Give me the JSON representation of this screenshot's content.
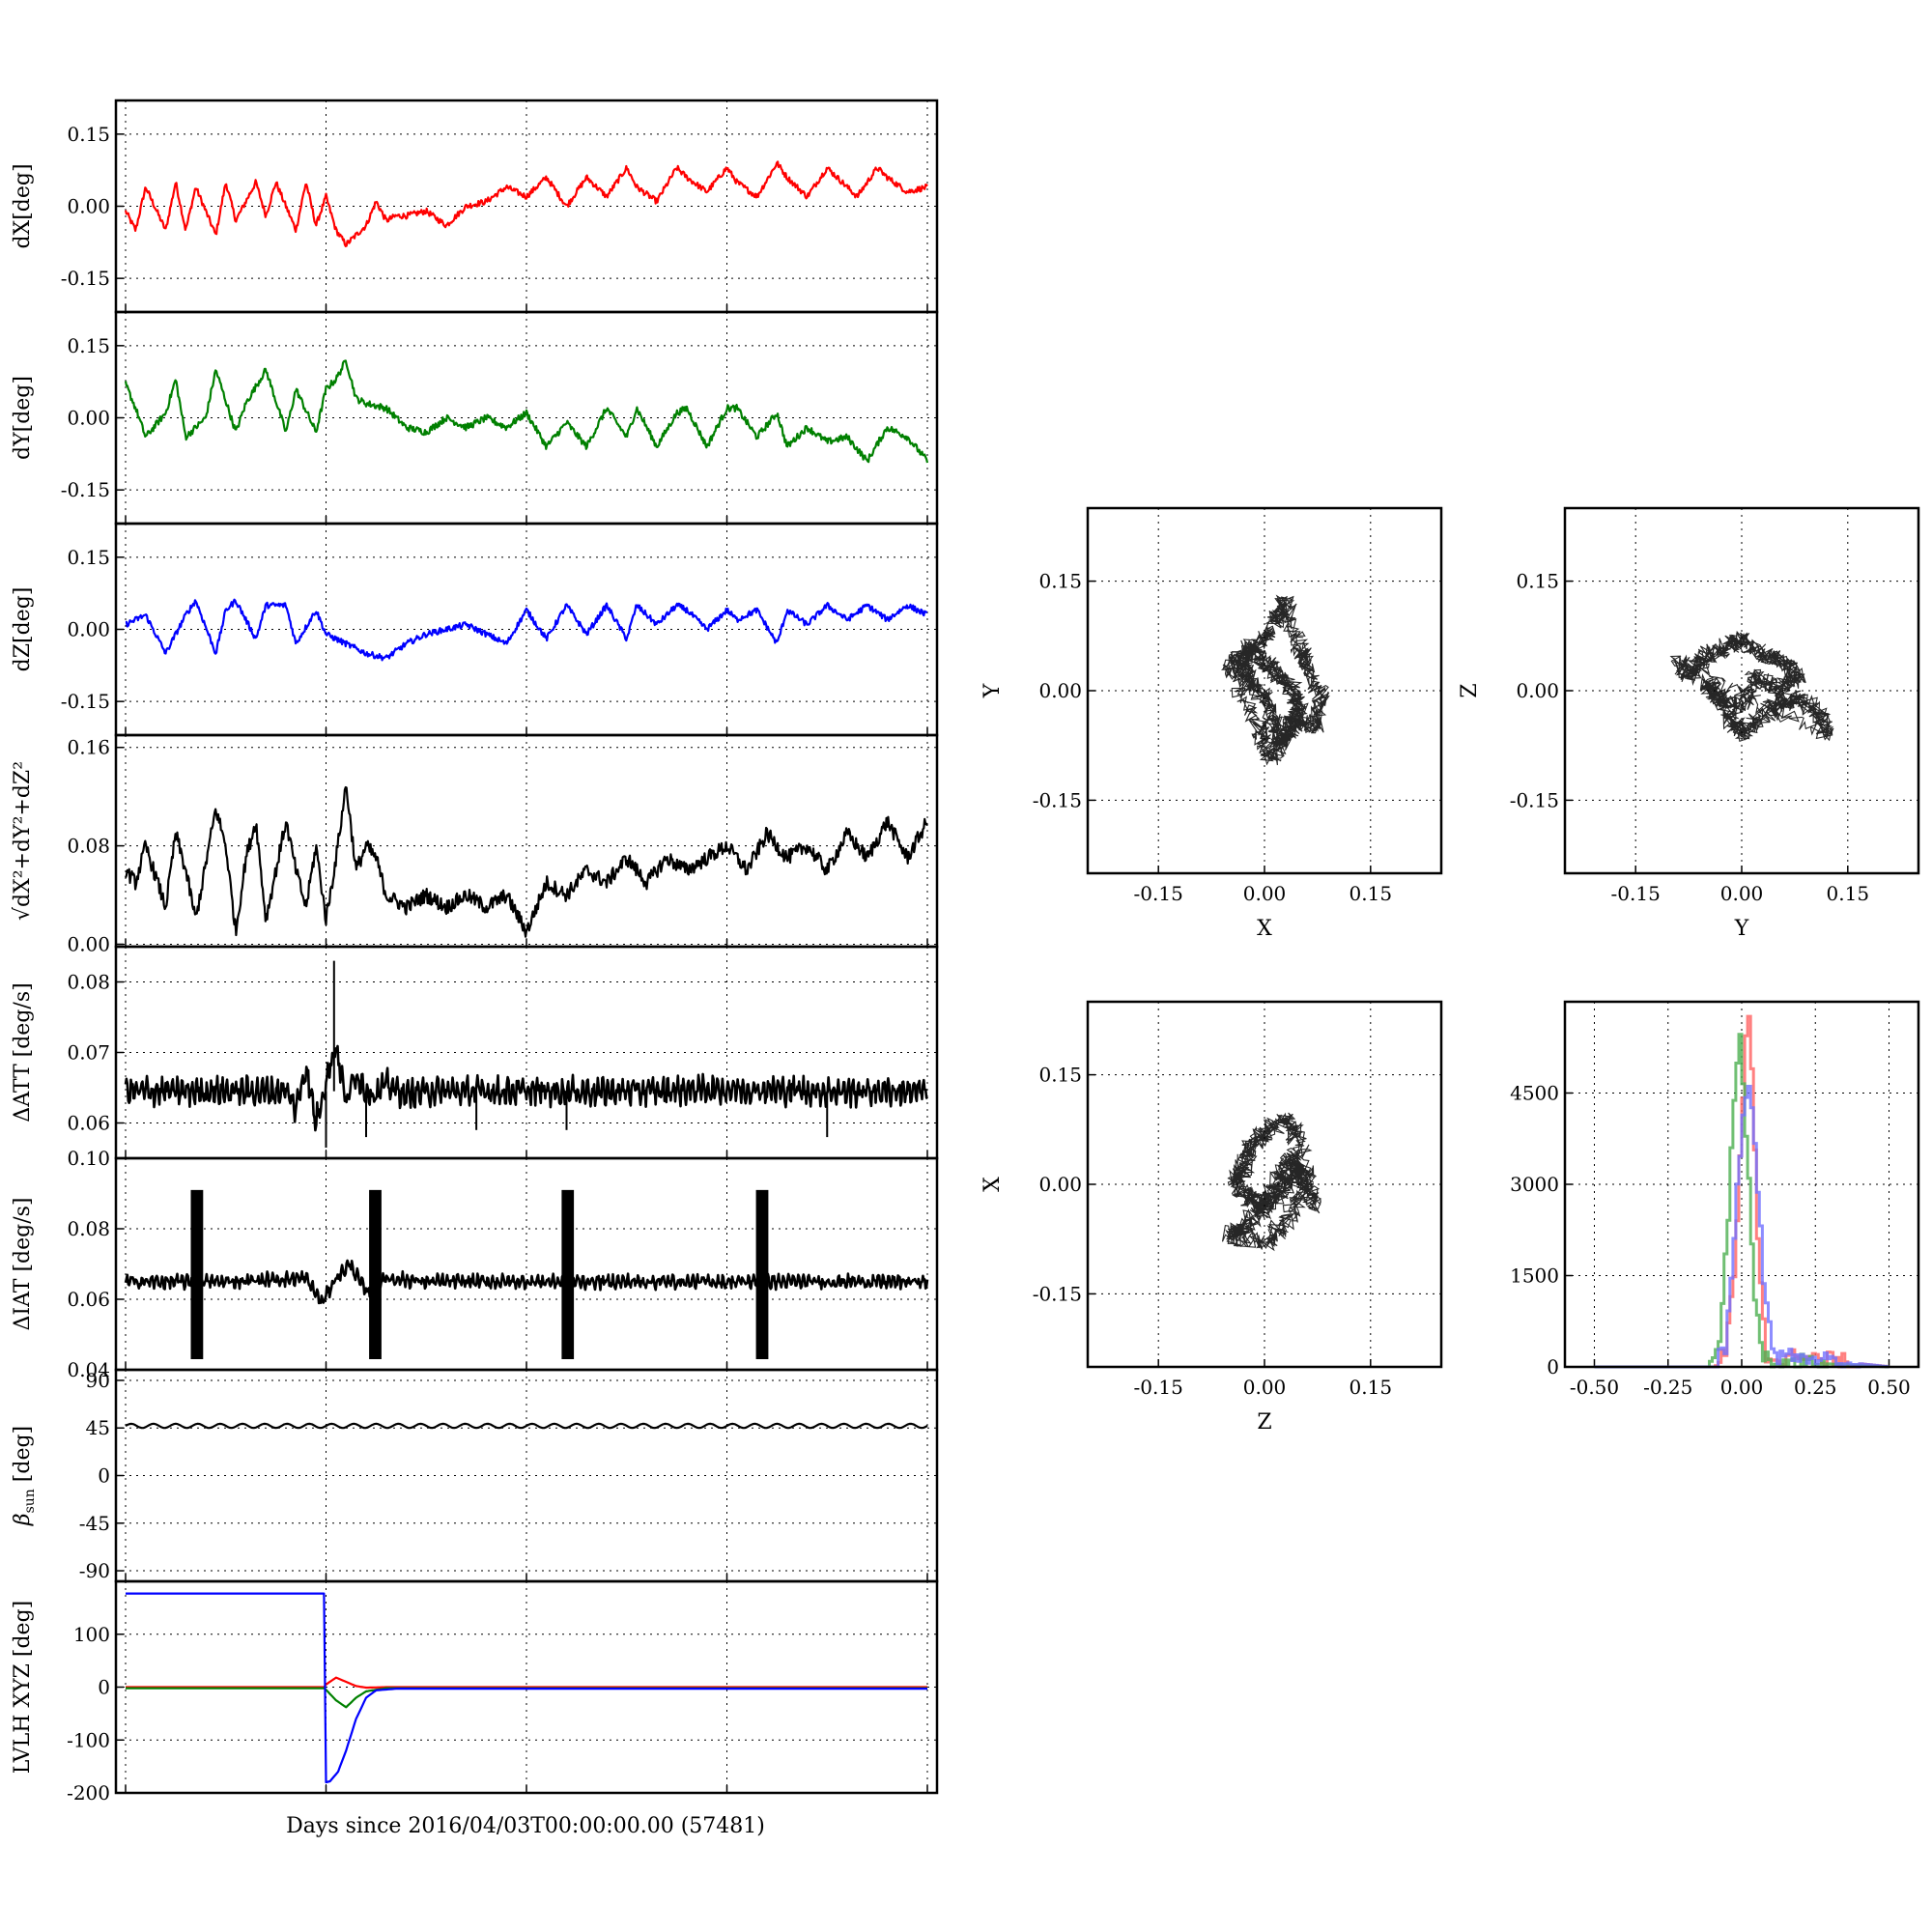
{
  "chart_data": [
    {
      "id": "dx",
      "type": "line",
      "ylabel": "dX[deg]",
      "ylim": [
        -0.22,
        0.22
      ],
      "yticks": [
        "0.15",
        "0.00",
        "-0.15"
      ],
      "ytick_values": [
        0.15,
        0.0,
        -0.15
      ],
      "xlim": [
        0,
        4
      ],
      "grid": true,
      "series": [
        {
          "color": "#ff0000",
          "x": [
            0,
            0.05,
            0.1,
            0.2,
            0.25,
            0.3,
            0.35,
            0.45,
            0.5,
            0.55,
            0.65,
            0.7,
            0.75,
            0.85,
            0.9,
            0.95,
            1.0,
            1.05,
            1.1,
            1.15,
            1.2,
            1.25,
            1.3,
            1.35,
            1.4,
            1.5,
            1.6,
            1.7,
            1.8,
            1.9,
            2.0,
            2.1,
            2.2,
            2.3,
            2.4,
            2.5,
            2.55,
            2.65,
            2.75,
            2.8,
            2.9,
            3.0,
            3.05,
            3.15,
            3.25,
            3.3,
            3.4,
            3.5,
            3.55,
            3.65,
            3.75,
            3.8,
            3.9,
            4.0
          ],
          "y": [
            -0.01,
            -0.05,
            0.04,
            -0.05,
            0.05,
            -0.05,
            0.04,
            -0.06,
            0.05,
            -0.03,
            0.05,
            -0.02,
            0.05,
            -0.05,
            0.05,
            -0.04,
            0.02,
            -0.05,
            -0.08,
            -0.06,
            -0.04,
            0.01,
            -0.03,
            -0.02,
            -0.02,
            -0.01,
            -0.04,
            0.0,
            0.01,
            0.04,
            0.02,
            0.06,
            0.0,
            0.06,
            0.02,
            0.08,
            0.04,
            0.01,
            0.08,
            0.06,
            0.03,
            0.08,
            0.05,
            0.02,
            0.09,
            0.06,
            0.02,
            0.08,
            0.06,
            0.02,
            0.08,
            0.06,
            0.03,
            0.04
          ]
        }
      ]
    },
    {
      "id": "dy",
      "type": "line",
      "ylabel": "dY[deg]",
      "ylim": [
        -0.22,
        0.22
      ],
      "yticks": [
        "0.15",
        "0.00",
        "-0.15"
      ],
      "ytick_values": [
        0.15,
        0.0,
        -0.15
      ],
      "xlim": [
        0,
        4
      ],
      "grid": true,
      "series": [
        {
          "color": "#008000",
          "x": [
            0,
            0.05,
            0.1,
            0.2,
            0.25,
            0.3,
            0.4,
            0.45,
            0.55,
            0.6,
            0.7,
            0.8,
            0.85,
            0.95,
            1.0,
            1.05,
            1.1,
            1.15,
            1.2,
            1.3,
            1.4,
            1.5,
            1.6,
            1.7,
            1.8,
            1.9,
            2.0,
            2.1,
            2.2,
            2.3,
            2.4,
            2.5,
            2.55,
            2.65,
            2.75,
            2.8,
            2.9,
            3.0,
            3.05,
            3.15,
            3.25,
            3.3,
            3.4,
            3.5,
            3.6,
            3.7,
            3.8,
            3.9,
            4.0
          ],
          "y": [
            0.07,
            0.02,
            -0.04,
            0.01,
            0.08,
            -0.04,
            0.0,
            0.1,
            -0.03,
            0.03,
            0.1,
            -0.03,
            0.06,
            -0.03,
            0.06,
            0.08,
            0.12,
            0.04,
            0.03,
            0.02,
            -0.02,
            -0.03,
            0.0,
            -0.02,
            0.0,
            -0.02,
            0.01,
            -0.06,
            -0.01,
            -0.06,
            0.02,
            -0.04,
            0.02,
            -0.06,
            0.01,
            0.02,
            -0.06,
            0.02,
            0.02,
            -0.04,
            0.01,
            -0.06,
            -0.02,
            -0.05,
            -0.04,
            -0.09,
            -0.02,
            -0.04,
            -0.09
          ]
        }
      ]
    },
    {
      "id": "dz",
      "type": "line",
      "ylabel": "dZ[deg]",
      "ylim": [
        -0.22,
        0.22
      ],
      "yticks": [
        "0.15",
        "0.00",
        "-0.15"
      ],
      "ytick_values": [
        0.15,
        0.0,
        -0.15
      ],
      "xlim": [
        0,
        4
      ],
      "grid": true,
      "series": [
        {
          "color": "#0000ff",
          "x": [
            0,
            0.1,
            0.2,
            0.3,
            0.35,
            0.45,
            0.5,
            0.55,
            0.65,
            0.7,
            0.8,
            0.85,
            0.95,
            1.0,
            1.1,
            1.2,
            1.3,
            1.4,
            1.5,
            1.6,
            1.7,
            1.8,
            1.9,
            2.0,
            2.1,
            2.2,
            2.3,
            2.4,
            2.5,
            2.55,
            2.65,
            2.75,
            2.8,
            2.9,
            3.0,
            3.05,
            3.15,
            3.25,
            3.3,
            3.4,
            3.5,
            3.6,
            3.7,
            3.8,
            3.9,
            4.0
          ],
          "y": [
            0.01,
            0.03,
            -0.05,
            0.03,
            0.06,
            -0.05,
            0.04,
            0.06,
            -0.02,
            0.05,
            0.05,
            -0.03,
            0.04,
            -0.01,
            -0.03,
            -0.05,
            -0.06,
            -0.03,
            -0.01,
            0.0,
            0.01,
            -0.01,
            -0.03,
            0.04,
            -0.02,
            0.05,
            -0.01,
            0.05,
            -0.02,
            0.05,
            0.01,
            0.05,
            0.04,
            0.0,
            0.04,
            0.02,
            0.04,
            -0.03,
            0.04,
            0.01,
            0.05,
            0.02,
            0.05,
            0.02,
            0.05,
            0.03
          ]
        }
      ]
    },
    {
      "id": "total",
      "type": "line",
      "ylabel": "√dX²+dY²+dZ²",
      "ylim": [
        -0.002,
        0.17
      ],
      "yticks": [
        "0.16",
        "0.08",
        "0.00"
      ],
      "ytick_values": [
        0.16,
        0.08,
        0.0
      ],
      "xlim": [
        0,
        4
      ],
      "grid": true,
      "series": [
        {
          "color": "#000000",
          "x": [
            0,
            0.05,
            0.1,
            0.2,
            0.25,
            0.3,
            0.35,
            0.45,
            0.5,
            0.55,
            0.6,
            0.65,
            0.7,
            0.8,
            0.85,
            0.9,
            0.95,
            1.0,
            1.05,
            1.1,
            1.15,
            1.2,
            1.25,
            1.3,
            1.4,
            1.5,
            1.6,
            1.7,
            1.8,
            1.9,
            2.0,
            2.1,
            2.2,
            2.3,
            2.4,
            2.5,
            2.6,
            2.7,
            2.8,
            2.9,
            3.0,
            3.1,
            3.2,
            3.3,
            3.4,
            3.5,
            3.6,
            3.7,
            3.8,
            3.9,
            4.0
          ],
          "y": [
            0.06,
            0.05,
            0.08,
            0.03,
            0.09,
            0.06,
            0.02,
            0.11,
            0.08,
            0.01,
            0.07,
            0.1,
            0.02,
            0.1,
            0.06,
            0.03,
            0.08,
            0.02,
            0.07,
            0.13,
            0.06,
            0.08,
            0.07,
            0.04,
            0.03,
            0.04,
            0.03,
            0.04,
            0.03,
            0.04,
            0.01,
            0.05,
            0.04,
            0.06,
            0.05,
            0.07,
            0.05,
            0.07,
            0.06,
            0.07,
            0.08,
            0.06,
            0.09,
            0.07,
            0.08,
            0.06,
            0.09,
            0.07,
            0.1,
            0.07,
            0.1
          ]
        }
      ]
    },
    {
      "id": "datt",
      "type": "line",
      "ylabel": "ΔATT [deg/s]",
      "ylim": [
        0.055,
        0.085
      ],
      "yticks": [
        "0.08",
        "0.07",
        "0.06"
      ],
      "ytick_values": [
        0.08,
        0.07,
        0.06
      ],
      "xlim": [
        0,
        4
      ],
      "grid": true,
      "series": [
        {
          "color": "#000000",
          "x": [
            0,
            0.5,
            0.8,
            0.85,
            0.9,
            0.95,
            1.0,
            1.05,
            1.1,
            1.15,
            1.2,
            1.25,
            1.3,
            1.4,
            1.5,
            2.0,
            2.5,
            3.0,
            3.5,
            4.0
          ],
          "y": [
            0.0645,
            0.0645,
            0.0645,
            0.062,
            0.068,
            0.06,
            0.066,
            0.071,
            0.063,
            0.067,
            0.0645,
            0.064,
            0.0655,
            0.064,
            0.0645,
            0.0645,
            0.0645,
            0.0648,
            0.0645,
            0.0645
          ]
        }
      ]
    },
    {
      "id": "diat",
      "type": "line",
      "ylabel": "ΔIAT [deg/s]",
      "ylim": [
        0.04,
        0.1
      ],
      "yticks": [
        "0.10",
        "0.08",
        "0.06",
        "0.04"
      ],
      "ytick_values": [
        0.1,
        0.08,
        0.06,
        0.04
      ],
      "xlim": [
        0,
        4
      ],
      "grid": true,
      "series": [
        {
          "color": "#000000",
          "x": [
            0,
            0.5,
            0.9,
            0.98,
            1.05,
            1.12,
            1.2,
            1.3,
            1.5,
            2.0,
            2.5,
            3.0,
            3.5,
            4.0
          ],
          "y": [
            0.065,
            0.065,
            0.066,
            0.059,
            0.066,
            0.07,
            0.062,
            0.066,
            0.065,
            0.065,
            0.065,
            0.065,
            0.065,
            0.065
          ]
        }
      ]
    },
    {
      "id": "beta",
      "type": "line",
      "ylabel": "β_sun [deg]",
      "ylim": [
        -100,
        100
      ],
      "yticks": [
        "90",
        "45",
        "0",
        "-45",
        "-90"
      ],
      "ytick_values": [
        90,
        45,
        0,
        -45,
        -90
      ],
      "xlim": [
        0,
        4
      ],
      "grid": true,
      "series": [
        {
          "color": "#000000",
          "x": [
            0,
            4
          ],
          "y": [
            47,
            47
          ]
        }
      ]
    },
    {
      "id": "lvlh",
      "type": "line",
      "ylabel": "LVLH XYZ [deg]",
      "ylim": [
        -200,
        200
      ],
      "yticks": [
        "100",
        "0",
        "-100",
        "-200"
      ],
      "ytick_values": [
        100,
        0,
        -100,
        -200
      ],
      "xlim": [
        0,
        4
      ],
      "grid": true,
      "xlabel": "Days since 2016/04/03T00:00:00.00 (57481)",
      "series": [
        {
          "color": "#ff0000",
          "x": [
            0,
            0.99,
            1.0,
            1.05,
            1.1,
            1.15,
            1.2,
            1.3,
            4.0
          ],
          "y": [
            0,
            0,
            5,
            18,
            10,
            2,
            -1,
            0,
            0
          ]
        },
        {
          "color": "#008000",
          "x": [
            0,
            0.99,
            1.0,
            1.05,
            1.1,
            1.15,
            1.2,
            1.3,
            4.0
          ],
          "y": [
            -2,
            -2,
            -5,
            -25,
            -38,
            -20,
            -8,
            -2,
            -2
          ]
        },
        {
          "color": "#0000ff",
          "x": [
            0,
            0.99,
            1.0,
            1.02,
            1.06,
            1.1,
            1.15,
            1.2,
            1.25,
            1.35,
            4.0
          ],
          "y": [
            177,
            177,
            -180,
            -178,
            -160,
            -120,
            -60,
            -20,
            -6,
            -3,
            -3
          ]
        }
      ]
    },
    {
      "id": "xy",
      "type": "scatter",
      "xlabel": "X",
      "ylabel": "Y",
      "xlim": [
        -0.25,
        0.25
      ],
      "ylim": [
        -0.25,
        0.25
      ],
      "xticks": [
        "-0.15",
        "0.00",
        "0.15"
      ],
      "xtick_values": [
        -0.15,
        0.0,
        0.15
      ],
      "yticks": [
        "0.15",
        "0.00",
        "-0.15"
      ],
      "ytick_values": [
        0.15,
        0.0,
        -0.15
      ],
      "grid": true,
      "series": [
        {
          "color": "#000000",
          "x": [
            -0.05,
            -0.03,
            0.0,
            0.02,
            0.03,
            0.05,
            0.06,
            0.08,
            0.07,
            0.04,
            0.03,
            0.01,
            0.0,
            -0.02,
            -0.03,
            -0.02,
            0.0,
            0.02,
            0.04,
            0.05,
            0.03,
            0.01,
            -0.01
          ],
          "y": [
            0.03,
            0.05,
            0.07,
            0.1,
            0.12,
            0.06,
            0.03,
            -0.01,
            -0.05,
            -0.04,
            -0.07,
            -0.04,
            -0.01,
            0.01,
            0.03,
            0.06,
            0.04,
            0.02,
            0.0,
            -0.03,
            -0.06,
            -0.09,
            -0.05
          ]
        }
      ]
    },
    {
      "id": "yz",
      "type": "scatter",
      "xlabel": "Y",
      "ylabel": "Z",
      "xlim": [
        -0.25,
        0.25
      ],
      "ylim": [
        -0.25,
        0.25
      ],
      "xticks": [
        "-0.15",
        "0.00",
        "0.15"
      ],
      "xtick_values": [
        -0.15,
        0.0,
        0.15
      ],
      "yticks": [
        "0.15",
        "0.00",
        "-0.15"
      ],
      "ytick_values": [
        0.15,
        0.0,
        -0.15
      ],
      "grid": true,
      "series": [
        {
          "color": "#000000",
          "x": [
            -0.09,
            -0.07,
            -0.05,
            -0.02,
            0.0,
            0.03,
            0.06,
            0.08,
            0.05,
            0.02,
            0.0,
            -0.03,
            -0.05,
            -0.02,
            0.0,
            0.02,
            0.05,
            0.08,
            0.11,
            0.12
          ],
          "y": [
            0.04,
            0.02,
            0.05,
            0.06,
            0.07,
            0.05,
            0.04,
            0.02,
            0.0,
            0.02,
            -0.02,
            -0.01,
            0.01,
            -0.03,
            -0.06,
            -0.04,
            -0.02,
            -0.01,
            -0.03,
            -0.06
          ]
        }
      ]
    },
    {
      "id": "zx",
      "type": "scatter",
      "xlabel": "Z",
      "ylabel": "X",
      "xlim": [
        -0.25,
        0.25
      ],
      "ylim": [
        -0.25,
        0.25
      ],
      "xticks": [
        "-0.15",
        "0.00",
        "0.15"
      ],
      "xtick_values": [
        -0.15,
        0.0,
        0.15
      ],
      "yticks": [
        "0.15",
        "0.00",
        "-0.15"
      ],
      "ytick_values": [
        0.15,
        0.0,
        -0.15
      ],
      "grid": true,
      "series": [
        {
          "color": "#000000",
          "x": [
            -0.05,
            -0.03,
            -0.01,
            0.01,
            0.03,
            0.05,
            0.07,
            0.05,
            0.03,
            0.0,
            -0.02,
            -0.03,
            -0.04,
            -0.02,
            0.0,
            0.02,
            0.04,
            0.06,
            0.03,
            0.0
          ],
          "y": [
            -0.07,
            -0.06,
            -0.04,
            -0.02,
            0.0,
            0.02,
            -0.03,
            0.06,
            0.09,
            0.07,
            0.05,
            0.02,
            0.0,
            -0.02,
            -0.03,
            0.01,
            0.04,
            0.0,
            -0.05,
            -0.08
          ]
        }
      ]
    },
    {
      "id": "hist",
      "type": "area",
      "xlim": [
        -0.6,
        0.6
      ],
      "ylim": [
        0,
        6000
      ],
      "xticks": [
        "-0.50",
        "-0.25",
        "0.00",
        "0.25",
        "0.50"
      ],
      "xtick_values": [
        -0.5,
        -0.25,
        0.0,
        0.25,
        0.5
      ],
      "yticks": [
        "4500",
        "3000",
        "1500",
        "0"
      ],
      "ytick_values": [
        4500,
        3000,
        1500,
        0
      ],
      "grid": true,
      "series": [
        {
          "color": "#ff6060",
          "x": [
            -0.5,
            -0.1,
            -0.06,
            -0.03,
            -0.01,
            0.01,
            0.02,
            0.03,
            0.05,
            0.08,
            0.5
          ],
          "y": [
            0,
            0,
            200,
            1500,
            3500,
            5500,
            5800,
            5000,
            2000,
            200,
            0
          ]
        },
        {
          "color": "#4caf50",
          "x": [
            -0.5,
            -0.12,
            -0.08,
            -0.05,
            -0.03,
            -0.01,
            0.0,
            0.02,
            0.04,
            0.07,
            0.5
          ],
          "y": [
            0,
            0,
            500,
            2500,
            4500,
            5500,
            4800,
            3000,
            1200,
            100,
            0
          ]
        },
        {
          "color": "#7070ff",
          "x": [
            -0.5,
            -0.1,
            -0.06,
            -0.03,
            0.0,
            0.02,
            0.03,
            0.05,
            0.07,
            0.1,
            0.5
          ],
          "y": [
            0,
            0,
            300,
            2200,
            4200,
            4500,
            4400,
            3000,
            1500,
            200,
            0
          ]
        }
      ]
    }
  ]
}
